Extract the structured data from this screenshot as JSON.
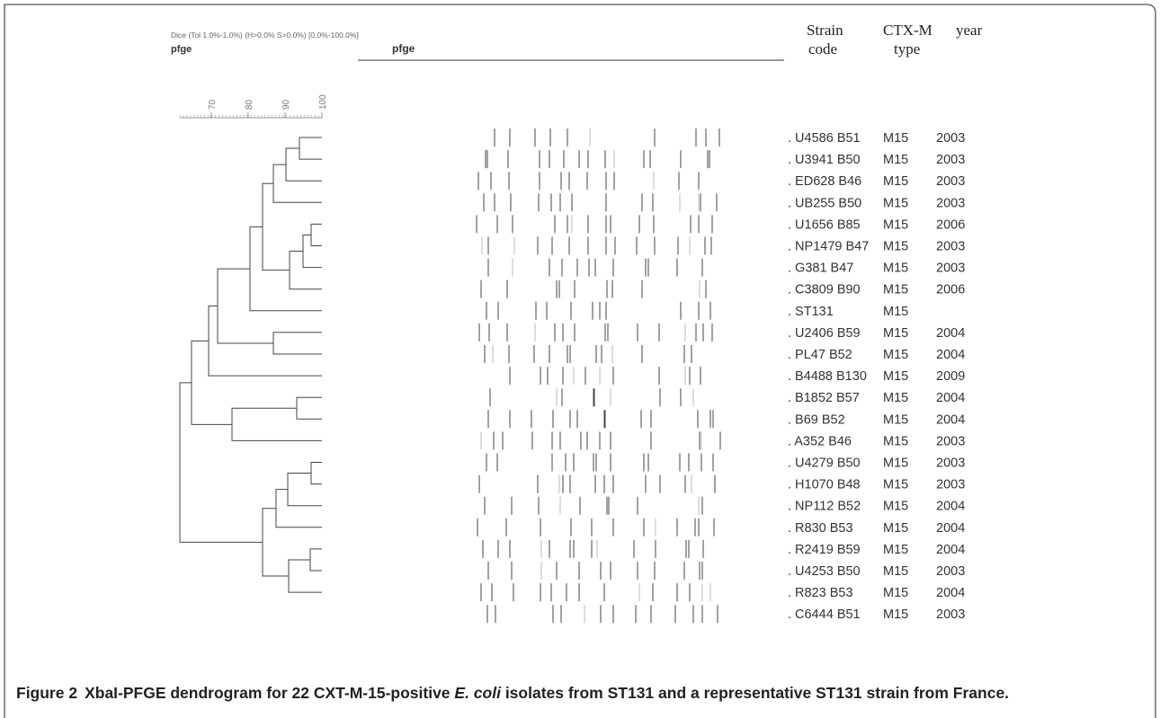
{
  "header": {
    "method": "Dice (Tol 1.0%-1.0%) (H>0.0% S>0.0%) [0.0%-100.0%]",
    "experiment": "pfge",
    "gel": "pfge"
  },
  "scale": {
    "ticks": [
      70,
      80,
      90,
      100
    ]
  },
  "columns": {
    "strain": [
      "Strain",
      "code"
    ],
    "type": [
      "CTX-M",
      "type"
    ],
    "year": [
      "year"
    ]
  },
  "rows": [
    [
      ". U4586 B51",
      "M15",
      "2003"
    ],
    [
      ". U3941 B50",
      "M15",
      "2003"
    ],
    [
      ". ED628 B46",
      "M15",
      "2003"
    ],
    [
      ". UB255 B50",
      "M15",
      "2003"
    ],
    [
      ". U1656 B85",
      "M15",
      "2006"
    ],
    [
      ". NP1479 B47",
      "M15",
      "2003"
    ],
    [
      ". G381 B47",
      "M15",
      "2003"
    ],
    [
      ". C3809 B90",
      "M15",
      "2006"
    ],
    [
      ". ST131",
      "M15",
      null
    ],
    [
      ". U2406 B59",
      "M15",
      "2004"
    ],
    [
      ". PL47 B52",
      "M15",
      "2004"
    ],
    [
      ". B4488 B130",
      "M15",
      "2009"
    ],
    [
      ". B1852 B57",
      "M15",
      "2004"
    ],
    [
      ". B69 B52",
      "M15",
      "2004"
    ],
    [
      ". A352 B46",
      "M15",
      "2003"
    ],
    [
      ". U4279 B50",
      "M15",
      "2003"
    ],
    [
      ". H1070 B48",
      "M15",
      "2003"
    ],
    [
      ". NP112 B52",
      "M15",
      "2004"
    ],
    [
      ". R830 B53",
      "M15",
      "2004"
    ],
    [
      ". R2419 B59",
      "M15",
      "2004"
    ],
    [
      ". U4253 B50",
      "M15",
      "2003"
    ],
    [
      ". R823 B53",
      "M15",
      "2004"
    ],
    [
      ". C6444 B51",
      "M15",
      "2003"
    ]
  ],
  "caption": {
    "label": "Figure 2",
    "text_before": "XbaI-PFGE dendrogram for 22 CXT-M-15-positive ",
    "italic": "E. coli",
    "text_after": " isolates from ST131 and a representative ST131 strain from France."
  }
}
